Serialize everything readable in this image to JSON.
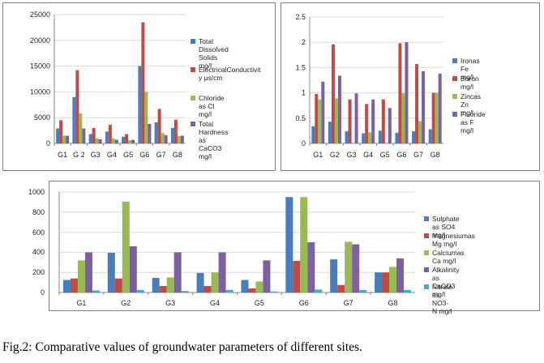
{
  "colors": {
    "blue": "#4a7ebb",
    "red": "#be4b48",
    "green": "#98b954",
    "purple": "#7d60a0",
    "cyan": "#46aac5"
  },
  "caption": "Fig.2: Comparative values of groundwater parameters of different sites.",
  "chart_data": [
    {
      "type": "bar",
      "categories": [
        "G1",
        "G 2",
        "G3",
        "G4",
        "G5",
        "G6",
        "G7",
        "G8"
      ],
      "ylim": [
        0,
        25000
      ],
      "yticks": [
        "0",
        "5000",
        "10000",
        "15000",
        "20000",
        "25000"
      ],
      "grid": "horizontal",
      "legend_position": "right",
      "series": [
        {
          "name": "Total Dissolved Solids mg/l",
          "color": "#4a7ebb",
          "values": [
            2900,
            9000,
            1800,
            2300,
            1300,
            15000,
            4100,
            3000
          ]
        },
        {
          "name": "Electrical Conductivity μs/cm",
          "color": "#be4b48",
          "values": [
            4500,
            14200,
            3000,
            3600,
            1800,
            23500,
            6700,
            4600
          ]
        },
        {
          "name": "Chloride as Cl mg/l",
          "color": "#98b954",
          "values": [
            1500,
            5800,
            1000,
            1000,
            600,
            10000,
            2000,
            1400
          ]
        },
        {
          "name": "Total Hardness as CaCO3 mg/l",
          "color": "#7d60a0",
          "values": [
            1500,
            2900,
            800,
            700,
            700,
            3800,
            1600,
            1500
          ]
        }
      ],
      "legend_labels": [
        [
          "Total Dissolved",
          "Solids mg/l"
        ],
        [
          "ElectricalConductivit",
          "y μs/cm"
        ],
        [
          "Chloride as Cl mg/l"
        ],
        [
          "Total Hardness as",
          "CaCO3 mg/l"
        ]
      ]
    },
    {
      "type": "bar",
      "categories": [
        "G1",
        "G2",
        "G3",
        "G4",
        "G5",
        "G6",
        "G7",
        "G8"
      ],
      "ylim": [
        0,
        2.5
      ],
      "yticks": [
        "0",
        "0.5",
        "1",
        "1.5",
        "2",
        "2.5"
      ],
      "grid": "horizontal",
      "legend_position": "right",
      "series": [
        {
          "name": "Ironas Fe mg/l",
          "color": "#4a7ebb",
          "values": [
            0.34,
            0.43,
            0.24,
            0.2,
            0.25,
            0.21,
            0.24,
            0.28
          ]
        },
        {
          "name": "Boron mg/l",
          "color": "#be4b48",
          "values": [
            0.98,
            1.96,
            0.87,
            0.78,
            0.87,
            1.98,
            1.57,
            1.0
          ]
        },
        {
          "name": "Zincas Zn mg/l",
          "color": "#98b954",
          "values": [
            0.87,
            0.89,
            0.0,
            0.22,
            0.0,
            0.99,
            0.44,
            1.0
          ]
        },
        {
          "name": "Fluoride as F mg/l",
          "color": "#7d60a0",
          "values": [
            1.22,
            1.34,
            0.99,
            0.87,
            0.7,
            2.0,
            1.43,
            1.38
          ]
        }
      ],
      "legend_labels": [
        [
          "Ironas Fe mg/l"
        ],
        [
          "Boron mg/l"
        ],
        [
          "Zincas Zn mg/l"
        ],
        [
          "Fluoride as F mg/l"
        ]
      ]
    },
    {
      "type": "bar",
      "categories": [
        "G1",
        "G2",
        "G3",
        "G4",
        "G5",
        "G6",
        "G7",
        "G8"
      ],
      "ylim": [
        0,
        1000
      ],
      "yticks": [
        "0",
        "200",
        "400",
        "600",
        "800",
        "1000"
      ],
      "grid": "horizontal",
      "legend_position": "right",
      "series": [
        {
          "name": "Sulphate as SO4 mg/l",
          "color": "#4a7ebb",
          "values": [
            125,
            395,
            145,
            195,
            125,
            950,
            330,
            200
          ]
        },
        {
          "name": "Magnesiumas Mg mg/l",
          "color": "#be4b48",
          "values": [
            140,
            140,
            65,
            65,
            40,
            315,
            75,
            200
          ]
        },
        {
          "name": "Calciumas Ca mg/l",
          "color": "#98b954",
          "values": [
            320,
            905,
            150,
            200,
            110,
            950,
            505,
            255
          ]
        },
        {
          "name": "Alkalinity as CaCO3 mg/l",
          "color": "#7d60a0",
          "values": [
            400,
            460,
            400,
            400,
            320,
            500,
            480,
            340
          ]
        },
        {
          "name": "Nitrate as NO3- N mg/l",
          "color": "#46aac5",
          "values": [
            20,
            25,
            15,
            25,
            10,
            30,
            25,
            25
          ]
        }
      ],
      "legend_labels": [
        [
          "Sulphate as SO4 mg/l"
        ],
        [
          "Magnesiumas Mg mg/l"
        ],
        [
          "Calciumas Ca mg/l"
        ],
        [
          "Alkalinity as CaCO3 mg/l"
        ],
        [
          "Nitrate as NO3- N mg/l"
        ]
      ]
    }
  ]
}
